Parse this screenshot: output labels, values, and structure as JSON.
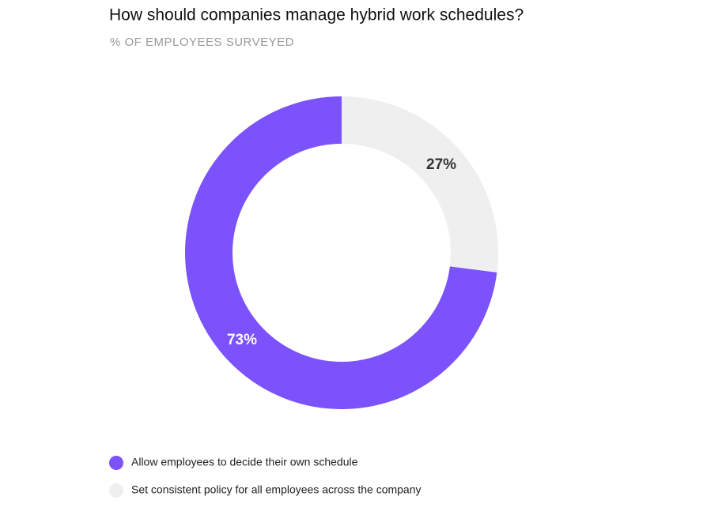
{
  "chart_data": {
    "type": "pie",
    "title": "How should companies manage hybrid work schedules?",
    "subtitle": "% OF EMPLOYEES SURVEYED",
    "categories": [
      "Allow employees to decide their own schedule",
      "Set consistent policy for all employees across the company"
    ],
    "values": [
      73,
      27
    ],
    "value_labels": [
      "73%",
      "27%"
    ],
    "colors": [
      "#7b52fb",
      "#efefef"
    ],
    "donut": true
  }
}
